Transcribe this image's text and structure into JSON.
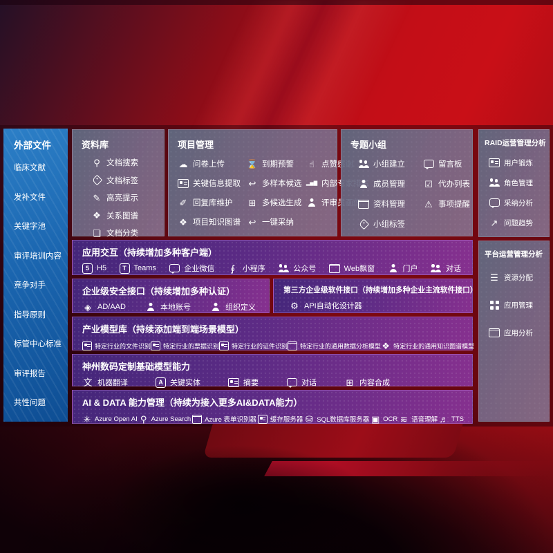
{
  "colors": {
    "background_red": "#c30e17",
    "sidebar_blue": "#1b66b0",
    "panel_gray": "#7a7690",
    "row_purple": "#5c2b85",
    "text": "#ffffff"
  },
  "sidebar": {
    "title": "外部文件",
    "items": [
      {
        "label": "临床文献"
      },
      {
        "label": "发补文件"
      },
      {
        "label": "关键字池"
      },
      {
        "label": "审评培训内容"
      },
      {
        "label": "竞争对手"
      },
      {
        "label": "指导原则"
      },
      {
        "label": "标管中心标准"
      },
      {
        "label": "审评报告"
      },
      {
        "label": "共性问题"
      }
    ]
  },
  "repo": {
    "title": "资料库",
    "items": [
      {
        "label": "文档搜索",
        "icon": "doc-search-icon"
      },
      {
        "label": "文档标签",
        "icon": "doc-tag-icon"
      },
      {
        "label": "高亮提示",
        "icon": "highlight-icon"
      },
      {
        "label": "关系图谱",
        "icon": "relation-graph-icon"
      },
      {
        "label": "文档分类",
        "icon": "doc-classify-icon"
      }
    ]
  },
  "project": {
    "title": "项目管理",
    "items": [
      {
        "label": "问卷上传",
        "icon": "upload-cloud-icon"
      },
      {
        "label": "到期预警",
        "icon": "alarm-icon"
      },
      {
        "label": "点赞感谢",
        "icon": "thumbs-up-icon"
      },
      {
        "label": "关键信息提取",
        "icon": "info-extract-icon"
      },
      {
        "label": "多样本候选",
        "icon": "reply-arrow-icon"
      },
      {
        "label": "内部专家排名",
        "icon": "rank-chart-icon"
      },
      {
        "label": "回复库维护",
        "icon": "pencil-icon"
      },
      {
        "label": "多候选生成",
        "icon": "generate-grid-icon"
      },
      {
        "label": "评审员画像",
        "icon": "reviewer-person-icon"
      },
      {
        "label": "项目知识图谱",
        "icon": "knowledge-graph-icon"
      },
      {
        "label": "一键采纳",
        "icon": "adopt-arrow-icon"
      }
    ]
  },
  "topic": {
    "title": "专题小组",
    "items": [
      {
        "label": "小组建立",
        "icon": "team-build-icon"
      },
      {
        "label": "留言板",
        "icon": "bbs-board-icon"
      },
      {
        "label": "成员管理",
        "icon": "member-manage-icon"
      },
      {
        "label": "代办列表",
        "icon": "todo-list-icon"
      },
      {
        "label": "资料管理",
        "icon": "material-manage-icon"
      },
      {
        "label": "事项提醒",
        "icon": "remind-bell-icon"
      },
      {
        "label": "小组标签",
        "icon": "team-tag-icon"
      }
    ]
  },
  "raid": {
    "title": "RAID运营管理分析",
    "items": [
      {
        "label": "用户锻炼",
        "icon": "user-card-icon"
      },
      {
        "label": "角色管理",
        "icon": "role-manage-icon"
      },
      {
        "label": "采纳分析",
        "icon": "adopt-analysis-icon"
      },
      {
        "label": "问题趋势",
        "icon": "issue-trend-icon"
      }
    ]
  },
  "platform": {
    "title": "平台运营管理分析",
    "items": [
      {
        "label": "资源分配",
        "icon": "resource-allocate-icon"
      },
      {
        "label": "应用管理",
        "icon": "app-manage-icon"
      },
      {
        "label": "应用分析",
        "icon": "app-analysis-icon"
      }
    ]
  },
  "rows": {
    "interact": {
      "title": "应用交互（持续增加多种客户端）",
      "items": [
        {
          "label": "H5",
          "icon": "h5-icon"
        },
        {
          "label": "Teams",
          "icon": "teams-icon"
        },
        {
          "label": "企业微信",
          "icon": "wecom-icon"
        },
        {
          "label": "小程序",
          "icon": "miniprogram-icon"
        },
        {
          "label": "公众号",
          "icon": "official-account-icon"
        },
        {
          "label": "Web飘窗",
          "icon": "web-popup-icon"
        },
        {
          "label": "门户",
          "icon": "portal-icon"
        },
        {
          "label": "对话",
          "icon": "dialog-icon"
        }
      ]
    },
    "security": {
      "title": "企业级安全接口（持续增加多种认证）",
      "items": [
        {
          "label": "AD/AAD",
          "icon": "ad-aad-icon"
        },
        {
          "label": "本地账号",
          "icon": "local-account-icon"
        },
        {
          "label": "组织定义",
          "icon": "org-define-icon"
        }
      ]
    },
    "thirdparty": {
      "title": "第三方企业级软件接口（持续增加多种企业主流软件接口）",
      "items": [
        {
          "label": "API自动化设计器",
          "icon": "api-designer-icon"
        }
      ]
    },
    "industry": {
      "title": "产业模型库（持续添加端到端场景模型）",
      "items": [
        {
          "label": "特定行业的文件识别",
          "icon": "file-recognition-icon"
        },
        {
          "label": "特定行业的票据识别",
          "icon": "receipt-recognition-icon"
        },
        {
          "label": "特定行业的证件识别",
          "icon": "idcard-recognition-icon"
        },
        {
          "label": "特定行业的通用数据分析模型",
          "icon": "data-analysis-model-icon"
        },
        {
          "label": "特定行业的通用知识图谱模型",
          "icon": "knowledge-graph-model-icon"
        }
      ]
    },
    "basemodel": {
      "title": "神州数码定制基础模型能力",
      "items": [
        {
          "label": "机器翻译",
          "icon": "translate-icon"
        },
        {
          "label": "关键实体",
          "icon": "key-entity-icon"
        },
        {
          "label": "摘要",
          "icon": "summary-icon"
        },
        {
          "label": "对话",
          "icon": "chat-bubble-icon"
        },
        {
          "label": "内容合成",
          "icon": "content-compose-icon"
        }
      ]
    },
    "aidata": {
      "title": "AI & DATA 能力管理（持续为接入更多AI&DATA能力）",
      "items": [
        {
          "label": "Azure Open AI",
          "icon": "azure-openai-icon"
        },
        {
          "label": "Azure Search",
          "icon": "azure-search-icon"
        },
        {
          "label": "Azure 表单识别器",
          "icon": "form-recognizer-icon"
        },
        {
          "label": "缓存服务器",
          "icon": "cache-server-icon"
        },
        {
          "label": "SQL数据库服务器",
          "icon": "sql-db-icon"
        },
        {
          "label": "OCR",
          "icon": "ocr-icon"
        },
        {
          "label": "语音理解",
          "icon": "speech-understand-icon"
        },
        {
          "label": "TTS",
          "icon": "tts-icon"
        }
      ]
    }
  }
}
